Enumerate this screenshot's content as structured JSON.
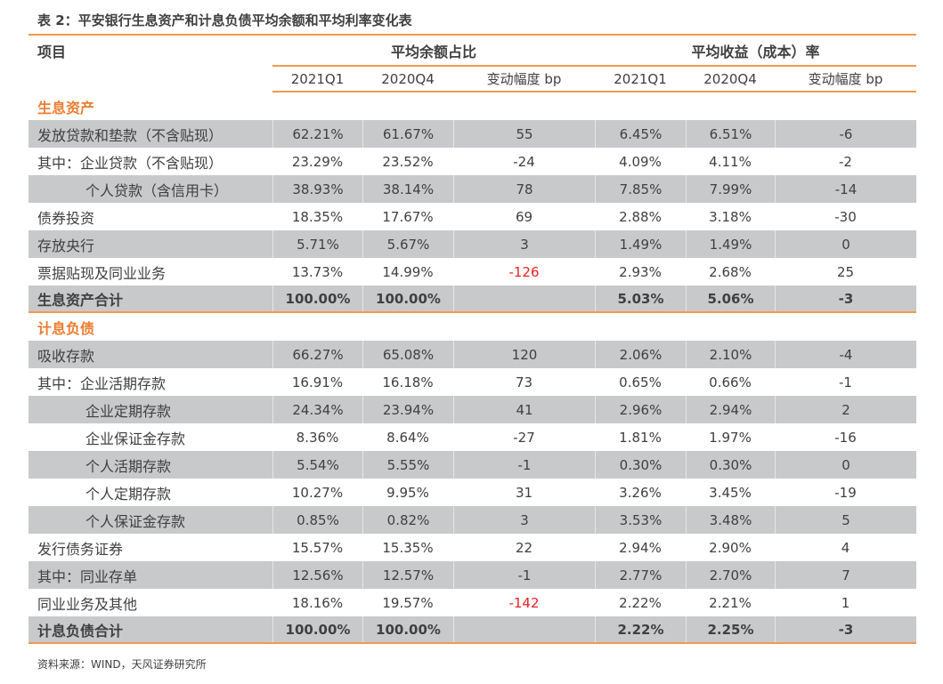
{
  "title": "表 2：平安银行生息资产和计息负债平均余额和平均利率变化表",
  "header": {
    "item": "项目",
    "group1": "平均余额占比",
    "group2": "平均收益（成本）率",
    "sub": [
      "2021Q1",
      "2020Q4",
      "变动幅度 bp",
      "2021Q1",
      "2020Q4",
      "变动幅度 bp"
    ]
  },
  "colors": {
    "accent": "#ee7d31",
    "negative": "#e8231f",
    "row_shade": "#c8c9cb"
  },
  "rows": [
    {
      "type": "section",
      "label": "生息资产"
    },
    {
      "label": "发放贷款和垫款（不含贴现）",
      "values": [
        "62.21%",
        "61.67%",
        "55",
        "6.45%",
        "6.51%",
        "-6"
      ]
    },
    {
      "label": "其中：企业贷款（不含贴现）",
      "values": [
        "23.29%",
        "23.52%",
        "-24",
        "4.09%",
        "4.11%",
        "-2"
      ]
    },
    {
      "label": "个人贷款（含信用卡）",
      "indent": true,
      "values": [
        "38.93%",
        "38.14%",
        "78",
        "7.85%",
        "7.99%",
        "-14"
      ]
    },
    {
      "label": "债券投资",
      "values": [
        "18.35%",
        "17.67%",
        "69",
        "2.88%",
        "3.18%",
        "-30"
      ]
    },
    {
      "label": "存放央行",
      "values": [
        "5.71%",
        "5.67%",
        "3",
        "1.49%",
        "1.49%",
        "0"
      ]
    },
    {
      "label": "票据贴现及同业业务",
      "values": [
        "13.73%",
        "14.99%",
        "-126",
        "2.93%",
        "2.68%",
        "25"
      ],
      "negative_col": 2
    },
    {
      "label": "生息资产合计",
      "bold": true,
      "values": [
        "100.00%",
        "100.00%",
        "",
        "5.03%",
        "5.06%",
        "-3"
      ]
    },
    {
      "type": "section",
      "label": "计息负债"
    },
    {
      "label": "吸收存款",
      "values": [
        "66.27%",
        "65.08%",
        "120",
        "2.06%",
        "2.10%",
        "-4"
      ]
    },
    {
      "label": "其中：企业活期存款",
      "values": [
        "16.91%",
        "16.18%",
        "73",
        "0.65%",
        "0.66%",
        "-1"
      ]
    },
    {
      "label": "企业定期存款",
      "indent": true,
      "values": [
        "24.34%",
        "23.94%",
        "41",
        "2.96%",
        "2.94%",
        "2"
      ]
    },
    {
      "label": "企业保证金存款",
      "indent": true,
      "values": [
        "8.36%",
        "8.64%",
        "-27",
        "1.81%",
        "1.97%",
        "-16"
      ]
    },
    {
      "label": "个人活期存款",
      "indent": true,
      "values": [
        "5.54%",
        "5.55%",
        "-1",
        "0.30%",
        "0.30%",
        "0"
      ]
    },
    {
      "label": "个人定期存款",
      "indent": true,
      "values": [
        "10.27%",
        "9.95%",
        "31",
        "3.26%",
        "3.45%",
        "-19"
      ]
    },
    {
      "label": "个人保证金存款",
      "indent": true,
      "values": [
        "0.85%",
        "0.82%",
        "3",
        "3.53%",
        "3.48%",
        "5"
      ]
    },
    {
      "label": "发行债务证券",
      "values": [
        "15.57%",
        "15.35%",
        "22",
        "2.94%",
        "2.90%",
        "4"
      ]
    },
    {
      "label": "其中：同业存单",
      "values": [
        "12.56%",
        "12.57%",
        "-1",
        "2.77%",
        "2.70%",
        "7"
      ]
    },
    {
      "label": "同业业务及其他",
      "values": [
        "18.16%",
        "19.57%",
        "-142",
        "2.22%",
        "2.21%",
        "1"
      ],
      "negative_col": 2
    },
    {
      "label": "计息负债合计",
      "bold": true,
      "values": [
        "100.00%",
        "100.00%",
        "",
        "2.22%",
        "2.25%",
        "-3"
      ]
    }
  ],
  "source": "资料来源：WIND，天风证券研究所"
}
